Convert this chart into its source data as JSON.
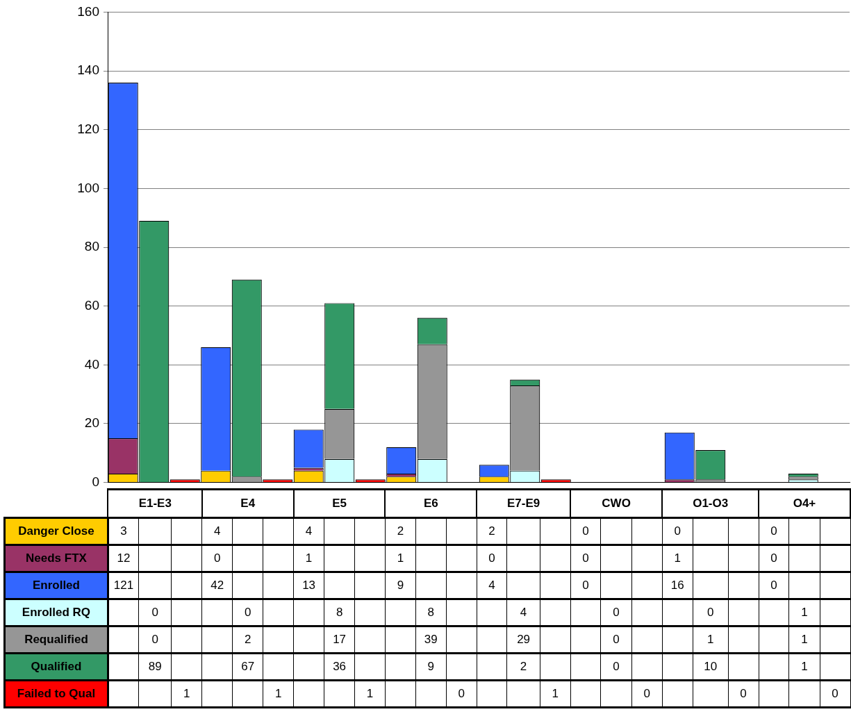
{
  "chart_data": {
    "type": "bar",
    "stacked": true,
    "grid": "y",
    "legend": false,
    "tick_labels": "y",
    "data_labels": true,
    "categories": [
      null,
      "E1-E3",
      null,
      null,
      "E4",
      null,
      null,
      "E5",
      null,
      null,
      "E6",
      null,
      null,
      "E7-E9",
      null,
      null,
      "CWO",
      null,
      null,
      "O1-O3",
      null,
      null,
      "O4+",
      null
    ],
    "ylim": [
      0,
      160
    ],
    "yticks": [
      0,
      20,
      40,
      60,
      80,
      100,
      120,
      140,
      160
    ],
    "series": [
      {
        "name": "Danger Close",
        "color": "#ffcc00",
        "values": [
          3,
          null,
          null,
          4,
          null,
          null,
          4,
          null,
          null,
          2,
          null,
          null,
          2,
          null,
          null,
          0,
          null,
          null,
          0,
          null,
          null,
          0,
          null,
          null
        ]
      },
      {
        "name": "Needs FTX",
        "color": "#993366",
        "values": [
          12,
          null,
          null,
          0,
          null,
          null,
          1,
          null,
          null,
          1,
          null,
          null,
          0,
          null,
          null,
          0,
          null,
          null,
          1,
          null,
          null,
          0,
          null,
          null
        ]
      },
      {
        "name": "Enrolled",
        "color": "#3366ff",
        "values": [
          121,
          null,
          null,
          42,
          null,
          null,
          13,
          null,
          null,
          9,
          null,
          null,
          4,
          null,
          null,
          0,
          null,
          null,
          16,
          null,
          null,
          0,
          null,
          null
        ]
      },
      {
        "name": "Enrolled RQ",
        "color": "#ccffff",
        "values": [
          null,
          0,
          null,
          null,
          0,
          null,
          null,
          8,
          null,
          null,
          8,
          null,
          null,
          4,
          null,
          null,
          0,
          null,
          null,
          0,
          null,
          null,
          1,
          null
        ]
      },
      {
        "name": "Requalified",
        "color": "#969696",
        "values": [
          null,
          0,
          null,
          null,
          2,
          null,
          null,
          17,
          null,
          null,
          39,
          null,
          null,
          29,
          null,
          null,
          0,
          null,
          null,
          1,
          null,
          null,
          1,
          null
        ]
      },
      {
        "name": "Qualified",
        "color": "#339966",
        "values": [
          null,
          89,
          null,
          null,
          67,
          null,
          null,
          36,
          null,
          null,
          9,
          null,
          null,
          2,
          null,
          null,
          0,
          null,
          null,
          10,
          null,
          null,
          1,
          null
        ]
      },
      {
        "name": "Failed to Qual",
        "color": "#ff0000",
        "values": [
          null,
          null,
          1,
          null,
          null,
          1,
          null,
          null,
          1,
          null,
          null,
          0,
          null,
          null,
          1,
          null,
          null,
          0,
          null,
          null,
          0,
          null,
          null,
          0
        ]
      }
    ]
  }
}
